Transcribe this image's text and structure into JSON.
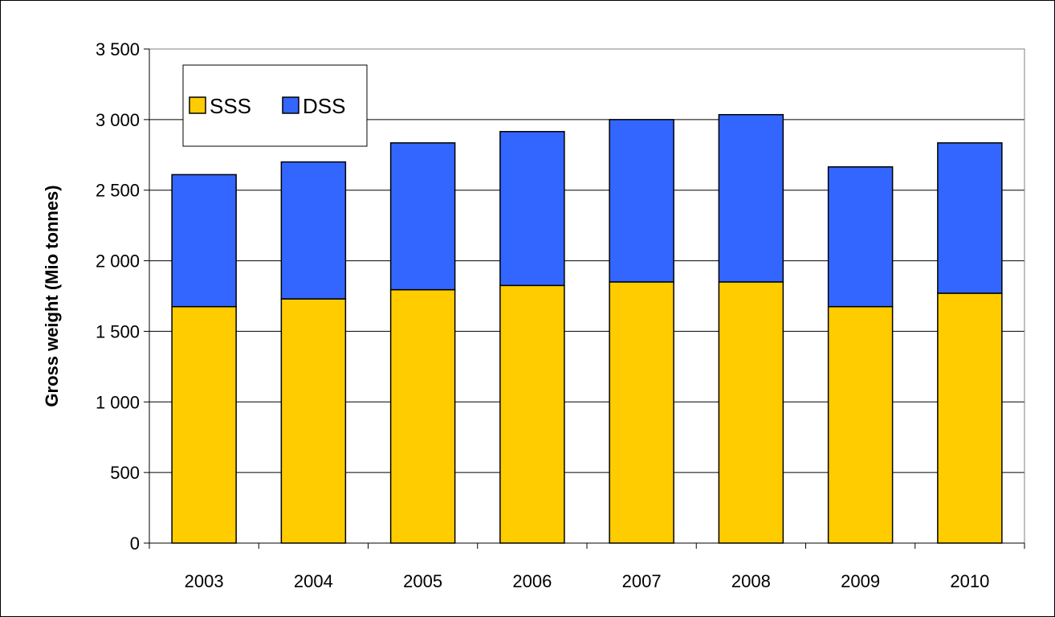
{
  "chart_data": {
    "type": "bar",
    "stacked": true,
    "categories": [
      "2003",
      "2004",
      "2005",
      "2006",
      "2007",
      "2008",
      "2009",
      "2010"
    ],
    "series": [
      {
        "name": "SSS",
        "color": "#FFCC00",
        "values": [
          1675,
          1730,
          1795,
          1825,
          1850,
          1850,
          1675,
          1770
        ]
      },
      {
        "name": "DSS",
        "color": "#3366FF",
        "values": [
          935,
          970,
          1040,
          1090,
          1150,
          1185,
          990,
          1065
        ]
      }
    ],
    "title": "",
    "xlabel": "",
    "ylabel": "Gross weight (Mio tonnes)",
    "ylim": [
      0,
      3500
    ],
    "yticks": [
      0,
      500,
      1000,
      1500,
      2000,
      2500,
      3000,
      3500
    ],
    "ytick_labels": [
      "0",
      "500",
      "1 000",
      "1 500",
      "2 000",
      "2 500",
      "3 000",
      "3 500"
    ],
    "grid": true,
    "legend_position": "top-left"
  }
}
